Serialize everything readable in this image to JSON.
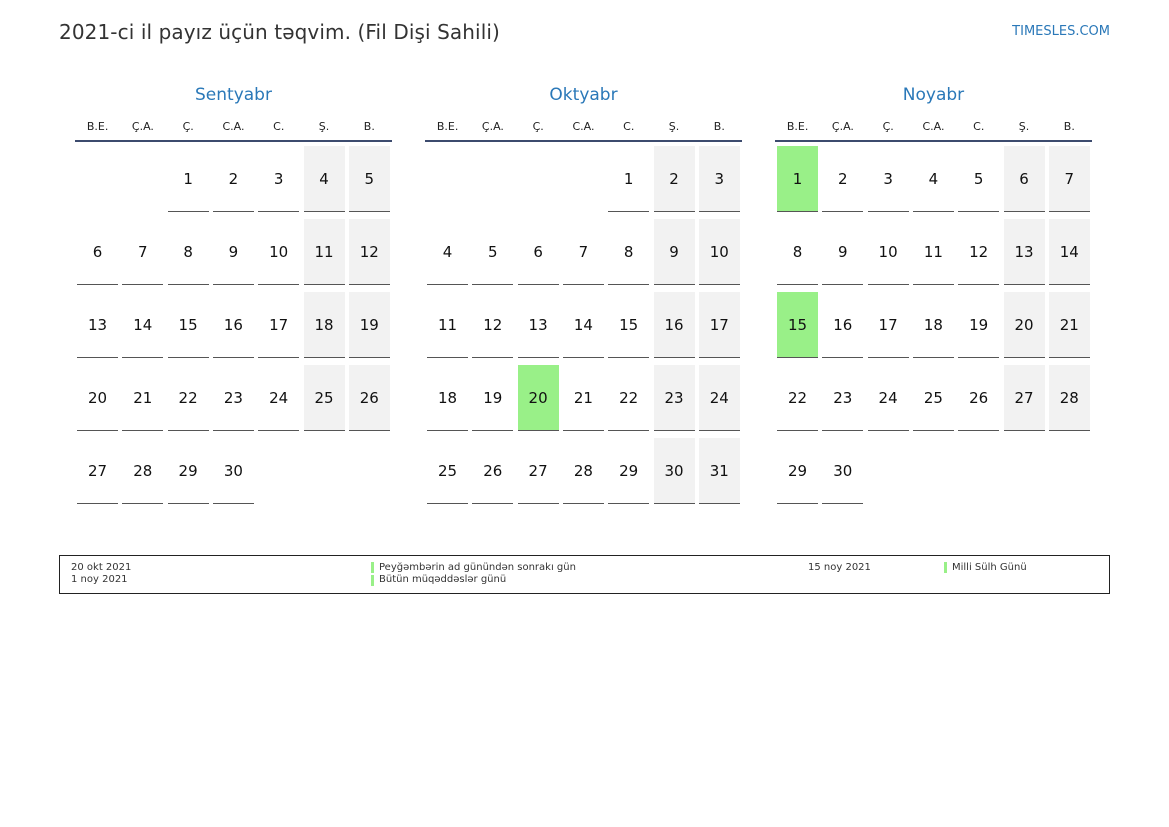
{
  "header": {
    "title": "2021-ci il payız üçün təqvim. (Fil Dişi Sahili)",
    "site": "TIMESLES.COM"
  },
  "weekdays": [
    "B.E.",
    "Ç.A.",
    "Ç.",
    "C.A.",
    "C.",
    "Ş.",
    "B."
  ],
  "colors": {
    "accent": "#2a78b8",
    "holiday": "#99f088",
    "weekend": "#f2f2f2"
  },
  "months": [
    {
      "name": "Sentyabr",
      "start_weekday": 2,
      "days": 30,
      "holidays": []
    },
    {
      "name": "Oktyabr",
      "start_weekday": 4,
      "days": 31,
      "holidays": [
        20
      ]
    },
    {
      "name": "Noyabr",
      "start_weekday": 0,
      "days": 30,
      "holidays": [
        1,
        15
      ]
    }
  ],
  "legend": {
    "left": [
      {
        "date": "20 okt 2021",
        "label": "Peyğəmbərin ad günündən sonrakı gün"
      },
      {
        "date": "1 noy 2021",
        "label": "Bütün müqəddəslər günü"
      }
    ],
    "right": [
      {
        "date": "15 noy 2021",
        "label": "Milli Sülh Günü"
      }
    ]
  }
}
